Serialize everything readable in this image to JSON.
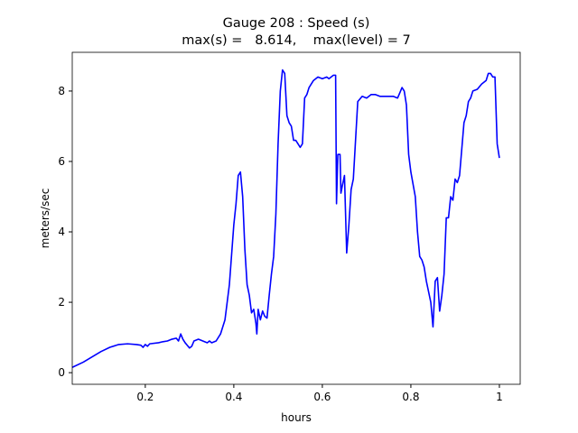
{
  "chart_data": {
    "type": "line",
    "title": "Gauge 208 : Speed (s)",
    "subtitle": "max(s) =   8.614,    max(level) = 7",
    "xlabel": "hours",
    "ylabel": "meters/sec",
    "xlim": [
      0.035,
      1.047
    ],
    "ylim": [
      -0.33,
      9.1
    ],
    "xticks": [
      0.2,
      0.4,
      0.6,
      0.8,
      1.0
    ],
    "yticks": [
      0,
      2,
      4,
      6,
      8
    ],
    "grid": false,
    "series": [
      {
        "color": "#0000ff",
        "x": [
          0.035,
          0.06,
          0.08,
          0.1,
          0.12,
          0.14,
          0.16,
          0.18,
          0.19,
          0.195,
          0.2,
          0.205,
          0.21,
          0.23,
          0.24,
          0.25,
          0.26,
          0.27,
          0.275,
          0.28,
          0.285,
          0.29,
          0.3,
          0.305,
          0.31,
          0.32,
          0.33,
          0.34,
          0.345,
          0.35,
          0.36,
          0.37,
          0.38,
          0.39,
          0.4,
          0.405,
          0.41,
          0.415,
          0.42,
          0.425,
          0.43,
          0.435,
          0.44,
          0.445,
          0.45,
          0.452,
          0.455,
          0.46,
          0.465,
          0.47,
          0.475,
          0.48,
          0.485,
          0.49,
          0.495,
          0.5,
          0.505,
          0.51,
          0.515,
          0.52,
          0.525,
          0.53,
          0.535,
          0.54,
          0.545,
          0.55,
          0.555,
          0.56,
          0.565,
          0.57,
          0.58,
          0.59,
          0.6,
          0.61,
          0.615,
          0.625,
          0.63,
          0.632,
          0.635,
          0.64,
          0.642,
          0.645,
          0.65,
          0.655,
          0.66,
          0.665,
          0.67,
          0.675,
          0.68,
          0.69,
          0.7,
          0.71,
          0.72,
          0.73,
          0.74,
          0.75,
          0.76,
          0.77,
          0.775,
          0.78,
          0.785,
          0.79,
          0.795,
          0.8,
          0.81,
          0.815,
          0.82,
          0.825,
          0.83,
          0.835,
          0.84,
          0.845,
          0.85,
          0.855,
          0.86,
          0.865,
          0.87,
          0.875,
          0.88,
          0.885,
          0.89,
          0.895,
          0.9,
          0.905,
          0.91,
          0.92,
          0.925,
          0.93,
          0.935,
          0.94,
          0.95,
          0.96,
          0.97,
          0.975,
          0.98,
          0.985,
          0.99,
          0.995,
          1.0
        ],
        "values": [
          0.15,
          0.3,
          0.45,
          0.6,
          0.72,
          0.8,
          0.82,
          0.8,
          0.78,
          0.72,
          0.8,
          0.75,
          0.82,
          0.85,
          0.88,
          0.9,
          0.95,
          0.98,
          0.9,
          1.1,
          0.95,
          0.85,
          0.7,
          0.75,
          0.9,
          0.95,
          0.9,
          0.85,
          0.9,
          0.85,
          0.9,
          1.1,
          1.5,
          2.5,
          4.2,
          4.8,
          5.6,
          5.7,
          5.0,
          3.5,
          2.5,
          2.2,
          1.7,
          1.8,
          1.4,
          1.1,
          1.8,
          1.5,
          1.75,
          1.6,
          1.55,
          2.2,
          2.8,
          3.3,
          4.5,
          6.5,
          8.0,
          8.6,
          8.5,
          7.3,
          7.1,
          7.0,
          6.6,
          6.6,
          6.5,
          6.4,
          6.5,
          7.8,
          7.9,
          8.1,
          8.3,
          8.4,
          8.35,
          8.4,
          8.35,
          8.45,
          8.45,
          4.8,
          6.2,
          6.2,
          5.1,
          5.3,
          5.6,
          3.4,
          4.2,
          5.2,
          5.5,
          6.6,
          7.7,
          7.85,
          7.8,
          7.9,
          7.9,
          7.85,
          7.85,
          7.85,
          7.85,
          7.8,
          7.95,
          8.1,
          8.0,
          7.6,
          6.2,
          5.7,
          5.0,
          4.0,
          3.3,
          3.2,
          3.0,
          2.6,
          2.3,
          2.0,
          1.3,
          2.6,
          2.7,
          1.75,
          2.2,
          2.8,
          4.4,
          4.4,
          5.0,
          4.9,
          5.5,
          5.4,
          5.6,
          7.1,
          7.3,
          7.7,
          7.8,
          8.0,
          8.05,
          8.2,
          8.3,
          8.5,
          8.5,
          8.4,
          8.4,
          6.5,
          6.1
        ]
      }
    ]
  }
}
